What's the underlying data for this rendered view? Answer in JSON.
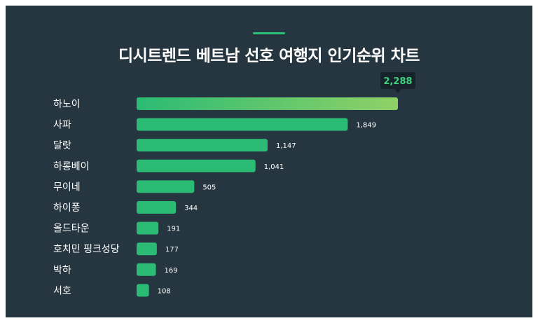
{
  "title": "디시트렌드 베트남 선호 여행지 인기순위 차트",
  "colors": {
    "background": "#263640",
    "bar": "#2bbb74",
    "bar_top_gradient_end": "#8fd166",
    "tooltip_bg": "#16232b",
    "tooltip_text": "#3fd17f",
    "label": "#ffffff"
  },
  "chart_data": {
    "type": "bar",
    "orientation": "horizontal",
    "title": "디시트렌드 베트남 선호 여행지 인기순위 차트",
    "categories": [
      "하노이",
      "사파",
      "달랏",
      "하롱베이",
      "무이네",
      "하이퐁",
      "올드타운",
      "호치민 핑크성당",
      "박하",
      "서호"
    ],
    "values": [
      2288,
      1849,
      1147,
      1041,
      505,
      344,
      191,
      177,
      169,
      108
    ],
    "value_labels": [
      "2,288",
      "1,849",
      "1,147",
      "1,041",
      "505",
      "344",
      "191",
      "177",
      "169",
      "108"
    ],
    "xlim": [
      0,
      2288
    ],
    "grid": false,
    "legend": "none",
    "highlight": {
      "index": 0,
      "label": "2,288"
    }
  }
}
